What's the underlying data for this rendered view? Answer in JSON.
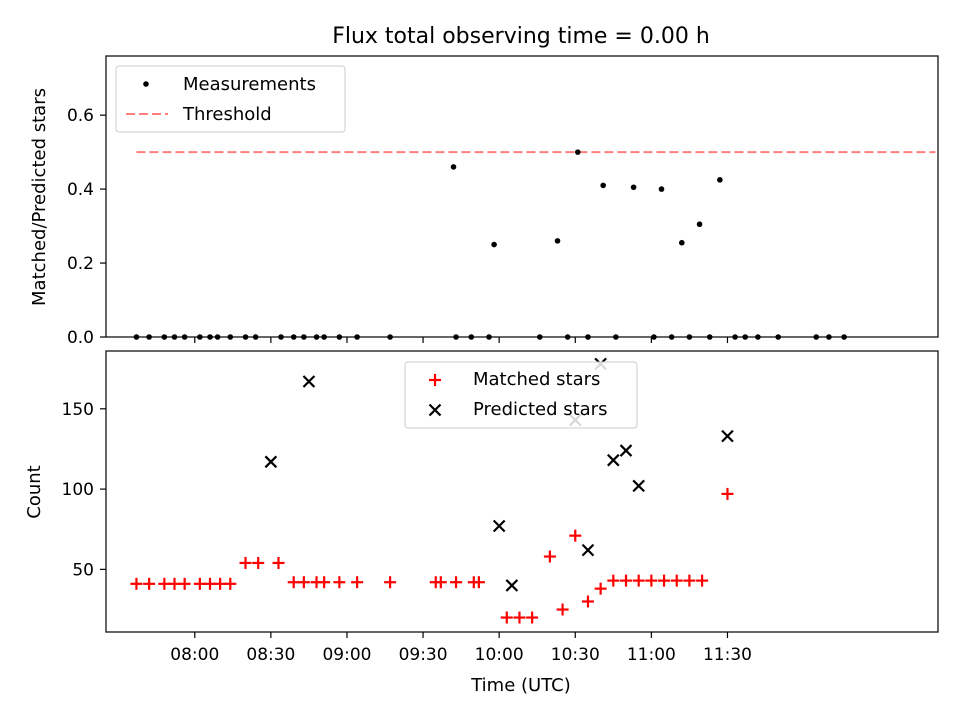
{
  "colors": {
    "measurement": "#000000",
    "threshold": "#ff7f7f",
    "matched": "#ff0000",
    "predicted": "#000000",
    "axis": "#000000"
  },
  "chart_data": [
    {
      "type": "scatter",
      "title": "Flux total observing time = 0.00 h",
      "xlabel": "",
      "ylabel": "Matched/Predicted stars",
      "xlim": [
        445,
        773
      ],
      "ylim": [
        0,
        0.76
      ],
      "xticks": [
        {
          "value": 480,
          "label": ""
        },
        {
          "value": 510,
          "label": ""
        },
        {
          "value": 540,
          "label": ""
        },
        {
          "value": 570,
          "label": ""
        },
        {
          "value": 600,
          "label": ""
        },
        {
          "value": 630,
          "label": ""
        },
        {
          "value": 660,
          "label": ""
        },
        {
          "value": 690,
          "label": ""
        }
      ],
      "yticks": [
        {
          "value": 0.0,
          "label": "0.0"
        },
        {
          "value": 0.2,
          "label": "0.2"
        },
        {
          "value": 0.4,
          "label": "0.4"
        },
        {
          "value": 0.6,
          "label": "0.6"
        }
      ],
      "legend": {
        "position": "top-left",
        "entries": [
          {
            "label": "Measurements",
            "marker": "dot"
          },
          {
            "label": "Threshold",
            "marker": "dashed-line"
          }
        ]
      },
      "threshold": {
        "value": 0.5,
        "x_start": 457,
        "x_end": 772
      },
      "series": [
        {
          "name": "Measurements",
          "x": [
            457,
            462,
            468,
            472,
            476,
            482,
            486,
            489,
            494,
            500,
            504,
            514,
            519,
            523,
            528,
            531,
            537,
            544,
            557,
            582,
            583,
            589,
            596,
            598,
            616,
            623,
            627,
            631,
            635,
            641,
            646,
            653,
            661,
            664,
            668,
            672,
            675,
            679,
            683,
            687,
            693,
            697,
            702,
            710,
            725,
            730,
            736
          ],
          "y": [
            0,
            0,
            0,
            0,
            0,
            0,
            0,
            0,
            0,
            0,
            0,
            0,
            0,
            0,
            0,
            0,
            0,
            0,
            0,
            0.46,
            0,
            0,
            0,
            0.25,
            0,
            0.26,
            0,
            0.5,
            0,
            0.41,
            0,
            0.405,
            0,
            0.4,
            0,
            0.255,
            0,
            0.305,
            0,
            0.425,
            0,
            0,
            0,
            0,
            0,
            0,
            0
          ]
        }
      ]
    },
    {
      "type": "scatter",
      "title": "",
      "xlabel": "Time (UTC)",
      "ylabel": "Count",
      "xlim": [
        445,
        773
      ],
      "ylim": [
        11,
        186
      ],
      "xticks": [
        {
          "value": 480,
          "label": "08:00"
        },
        {
          "value": 510,
          "label": "08:30"
        },
        {
          "value": 540,
          "label": "09:00"
        },
        {
          "value": 570,
          "label": "09:30"
        },
        {
          "value": 600,
          "label": "10:00"
        },
        {
          "value": 630,
          "label": "10:30"
        },
        {
          "value": 660,
          "label": "11:00"
        },
        {
          "value": 690,
          "label": "11:30"
        }
      ],
      "yticks": [
        {
          "value": 50,
          "label": "50"
        },
        {
          "value": 100,
          "label": "100"
        },
        {
          "value": 150,
          "label": "150"
        }
      ],
      "legend": {
        "position": "top-center",
        "entries": [
          {
            "label": "Matched stars",
            "marker": "plus"
          },
          {
            "label": "Predicted stars",
            "marker": "x"
          }
        ]
      },
      "series": [
        {
          "name": "Matched stars",
          "x": [
            457,
            462,
            468,
            472,
            476,
            482,
            486,
            490,
            494,
            500,
            505,
            513,
            519,
            523,
            528,
            531,
            537,
            544,
            557,
            575,
            577,
            583,
            590,
            592,
            603,
            608,
            613,
            620,
            625,
            630,
            635,
            640,
            645,
            650,
            655,
            660,
            665,
            670,
            675,
            680,
            690
          ],
          "y": [
            41,
            41,
            41,
            41,
            41,
            41,
            41,
            41,
            41,
            54,
            54,
            54,
            42,
            42,
            42,
            42,
            42,
            42,
            42,
            42,
            42,
            42,
            42,
            42,
            20,
            20,
            20,
            58,
            25,
            71,
            30,
            38,
            43,
            43,
            43,
            43,
            43,
            43,
            43,
            43,
            97
          ]
        },
        {
          "name": "Predicted stars",
          "x": [
            510,
            525,
            600,
            605,
            630,
            635,
            640,
            645,
            650,
            655,
            690
          ],
          "y": [
            117,
            167,
            77,
            40,
            143,
            62,
            178,
            118,
            124,
            102,
            133
          ]
        }
      ]
    }
  ]
}
